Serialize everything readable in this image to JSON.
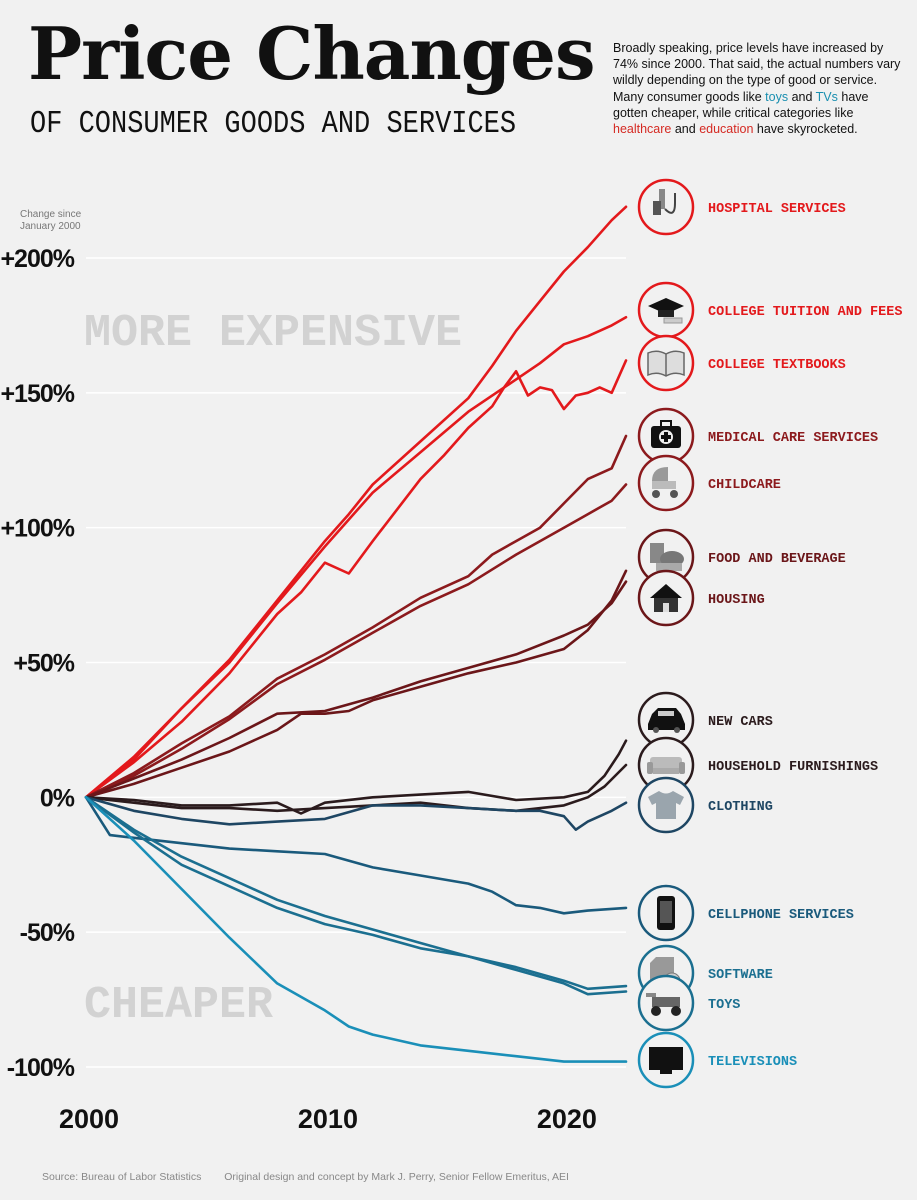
{
  "title": "Price Changes",
  "subtitle": "OF CONSUMER GOODS AND SERVICES",
  "intro": {
    "part1": "Broadly speaking, price levels have increased by 74% since 2000. That said, the actual numbers vary wildly depending on the type of good or service. Many consumer goods like ",
    "toys": "toys",
    "and1": " and ",
    "tvs": "TVs",
    "part2": " have gotten cheaper, while critical categories like ",
    "healthcare": "healthcare",
    "and2": " and ",
    "education": "education",
    "part3": " have skyrocketed."
  },
  "footer": {
    "source": "Source: Bureau of Labor Statistics",
    "credit": "Original design and concept by Mark J. Perry, Senior Fellow Emeritus, AEI"
  },
  "chart_data": {
    "type": "line",
    "axis_note": [
      "Change since",
      "January 2000"
    ],
    "y_ticks": [
      {
        "value": 200,
        "label": "+200%"
      },
      {
        "value": 150,
        "label": "+150%"
      },
      {
        "value": 100,
        "label": "+100%"
      },
      {
        "value": 50,
        "label": "+50%"
      },
      {
        "value": 0,
        "label": "0%"
      },
      {
        "value": -50,
        "label": "-50%"
      },
      {
        "value": -100,
        "label": "-100%"
      }
    ],
    "x_ticks": [
      {
        "value": 2000,
        "label": "2000"
      },
      {
        "value": 2010,
        "label": "2010"
      },
      {
        "value": 2020,
        "label": "2020"
      }
    ],
    "xlim": [
      2000,
      2022.6
    ],
    "ylim": [
      -100,
      200
    ],
    "zone_labels": {
      "upper": "MORE EXPENSIVE",
      "lower": "CHEAPER"
    },
    "colors": {
      "bright_red": "#e3191c",
      "red": "#c21d22",
      "dark_red": "#8c1a1d",
      "maroon": "#6b1619",
      "near_black": "#2b1b1d",
      "navy": "#1e4663",
      "blue": "#1a5a7c",
      "teal": "#1b6f90",
      "sky": "#1a8fb8"
    },
    "series": [
      {
        "name": "HOSPITAL SERVICES",
        "color": "#e3191c",
        "icon": "hospital-icon",
        "points": [
          [
            2000,
            0
          ],
          [
            2002,
            15
          ],
          [
            2004,
            33
          ],
          [
            2006,
            51
          ],
          [
            2008,
            73
          ],
          [
            2010,
            95
          ],
          [
            2011,
            105
          ],
          [
            2012,
            116
          ],
          [
            2014,
            132
          ],
          [
            2016,
            148
          ],
          [
            2017,
            160
          ],
          [
            2018,
            173
          ],
          [
            2019,
            184
          ],
          [
            2020,
            195
          ],
          [
            2021,
            204
          ],
          [
            2022,
            214
          ],
          [
            2022.6,
            219
          ]
        ]
      },
      {
        "name": "COLLEGE TUITION AND FEES",
        "color": "#e3191c",
        "icon": "graduation-cap-icon",
        "points": [
          [
            2000,
            0
          ],
          [
            2002,
            14
          ],
          [
            2004,
            33
          ],
          [
            2006,
            50
          ],
          [
            2008,
            72
          ],
          [
            2010,
            93
          ],
          [
            2012,
            113
          ],
          [
            2014,
            128
          ],
          [
            2016,
            143
          ],
          [
            2018,
            155
          ],
          [
            2019,
            161
          ],
          [
            2020,
            168
          ],
          [
            2021,
            171
          ],
          [
            2022,
            175
          ],
          [
            2022.6,
            178
          ]
        ]
      },
      {
        "name": "COLLEGE TEXTBOOKS",
        "color": "#e3191c",
        "icon": "book-icon",
        "points": [
          [
            2000,
            0
          ],
          [
            2002,
            13
          ],
          [
            2004,
            28
          ],
          [
            2006,
            46
          ],
          [
            2008,
            68
          ],
          [
            2009,
            76
          ],
          [
            2010,
            87
          ],
          [
            2011,
            83
          ],
          [
            2012,
            95
          ],
          [
            2014,
            118
          ],
          [
            2015,
            127
          ],
          [
            2016,
            137
          ],
          [
            2017,
            145
          ],
          [
            2017.5,
            152
          ],
          [
            2018,
            158
          ],
          [
            2018.5,
            149
          ],
          [
            2019,
            152
          ],
          [
            2019.5,
            151
          ],
          [
            2020,
            144
          ],
          [
            2020.5,
            149
          ],
          [
            2021,
            150
          ],
          [
            2021.5,
            152
          ],
          [
            2022,
            150
          ],
          [
            2022.6,
            162
          ]
        ]
      },
      {
        "name": "MEDICAL CARE SERVICES",
        "color": "#8c1a1d",
        "icon": "medical-kit-icon",
        "points": [
          [
            2000,
            0
          ],
          [
            2002,
            9
          ],
          [
            2004,
            20
          ],
          [
            2006,
            30
          ],
          [
            2008,
            44
          ],
          [
            2010,
            53
          ],
          [
            2012,
            63
          ],
          [
            2014,
            74
          ],
          [
            2016,
            82
          ],
          [
            2017,
            90
          ],
          [
            2018,
            95
          ],
          [
            2019,
            100
          ],
          [
            2020,
            109
          ],
          [
            2021,
            118
          ],
          [
            2022,
            122
          ],
          [
            2022.6,
            134
          ]
        ]
      },
      {
        "name": "CHILDCARE",
        "color": "#8c1a1d",
        "icon": "stroller-icon",
        "points": [
          [
            2000,
            0
          ],
          [
            2002,
            8
          ],
          [
            2004,
            18
          ],
          [
            2006,
            29
          ],
          [
            2008,
            42
          ],
          [
            2010,
            51
          ],
          [
            2012,
            61
          ],
          [
            2014,
            71
          ],
          [
            2016,
            79
          ],
          [
            2018,
            90
          ],
          [
            2020,
            100
          ],
          [
            2021,
            105
          ],
          [
            2022,
            110
          ],
          [
            2022.6,
            116
          ]
        ]
      },
      {
        "name": "FOOD AND BEVERAGE",
        "color": "#6b1619",
        "icon": "food-icon",
        "points": [
          [
            2000,
            0
          ],
          [
            2002,
            5
          ],
          [
            2004,
            11
          ],
          [
            2006,
            17
          ],
          [
            2008,
            25
          ],
          [
            2009,
            31
          ],
          [
            2010,
            31
          ],
          [
            2011,
            32
          ],
          [
            2012,
            36
          ],
          [
            2014,
            41
          ],
          [
            2016,
            46
          ],
          [
            2018,
            50
          ],
          [
            2020,
            55
          ],
          [
            2021,
            62
          ],
          [
            2022,
            73
          ],
          [
            2022.6,
            84
          ]
        ]
      },
      {
        "name": "HOUSING",
        "color": "#6b1619",
        "icon": "house-icon",
        "points": [
          [
            2000,
            0
          ],
          [
            2002,
            7
          ],
          [
            2004,
            14
          ],
          [
            2006,
            22
          ],
          [
            2008,
            31
          ],
          [
            2010,
            32
          ],
          [
            2012,
            37
          ],
          [
            2014,
            43
          ],
          [
            2016,
            48
          ],
          [
            2018,
            53
          ],
          [
            2020,
            60
          ],
          [
            2021,
            64
          ],
          [
            2022,
            72
          ],
          [
            2022.6,
            80
          ]
        ]
      },
      {
        "name": "NEW CARS",
        "color": "#2b1b1d",
        "icon": "car-icon",
        "points": [
          [
            2000,
            0
          ],
          [
            2002,
            -1
          ],
          [
            2004,
            -3
          ],
          [
            2006,
            -3
          ],
          [
            2008,
            -2
          ],
          [
            2009,
            -6
          ],
          [
            2010,
            -2
          ],
          [
            2012,
            0
          ],
          [
            2014,
            1
          ],
          [
            2016,
            2
          ],
          [
            2018,
            -1
          ],
          [
            2020,
            0
          ],
          [
            2021,
            2
          ],
          [
            2021.7,
            8
          ],
          [
            2022.3,
            16
          ],
          [
            2022.6,
            21
          ]
        ]
      },
      {
        "name": "HOUSEHOLD FURNISHINGS",
        "color": "#2b1b1d",
        "icon": "sofa-icon",
        "points": [
          [
            2000,
            0
          ],
          [
            2002,
            -2
          ],
          [
            2004,
            -4
          ],
          [
            2006,
            -4
          ],
          [
            2008,
            -5
          ],
          [
            2010,
            -4
          ],
          [
            2012,
            -3
          ],
          [
            2014,
            -2
          ],
          [
            2016,
            -4
          ],
          [
            2018,
            -5
          ],
          [
            2020,
            -3
          ],
          [
            2021,
            0
          ],
          [
            2021.7,
            4
          ],
          [
            2022.6,
            12
          ]
        ]
      },
      {
        "name": "CLOTHING",
        "color": "#1e4663",
        "icon": "shirt-icon",
        "points": [
          [
            2000,
            0
          ],
          [
            2002,
            -5
          ],
          [
            2004,
            -8
          ],
          [
            2006,
            -10
          ],
          [
            2008,
            -9
          ],
          [
            2010,
            -8
          ],
          [
            2012,
            -3
          ],
          [
            2014,
            -3
          ],
          [
            2016,
            -4
          ],
          [
            2018,
            -5
          ],
          [
            2019,
            -5
          ],
          [
            2020,
            -7
          ],
          [
            2020.5,
            -12
          ],
          [
            2021,
            -9
          ],
          [
            2022,
            -5
          ],
          [
            2022.6,
            -2
          ]
        ]
      },
      {
        "name": "CELLPHONE SERVICES",
        "color": "#1a5a7c",
        "icon": "phone-icon",
        "points": [
          [
            2000,
            0
          ],
          [
            2001,
            -14
          ],
          [
            2002,
            -15
          ],
          [
            2004,
            -17
          ],
          [
            2006,
            -19
          ],
          [
            2008,
            -20
          ],
          [
            2010,
            -21
          ],
          [
            2012,
            -26
          ],
          [
            2014,
            -29
          ],
          [
            2016,
            -32
          ],
          [
            2017,
            -35
          ],
          [
            2018,
            -40
          ],
          [
            2019,
            -41
          ],
          [
            2020,
            -43
          ],
          [
            2021,
            -42
          ],
          [
            2022.6,
            -41
          ]
        ]
      },
      {
        "name": "SOFTWARE",
        "color": "#1b6f90",
        "icon": "software-icon",
        "points": [
          [
            2000,
            0
          ],
          [
            2002,
            -13
          ],
          [
            2004,
            -25
          ],
          [
            2006,
            -33
          ],
          [
            2008,
            -41
          ],
          [
            2010,
            -47
          ],
          [
            2012,
            -51
          ],
          [
            2014,
            -56
          ],
          [
            2016,
            -59
          ],
          [
            2018,
            -63
          ],
          [
            2020,
            -68
          ],
          [
            2021,
            -71
          ],
          [
            2022.6,
            -70
          ]
        ]
      },
      {
        "name": "TOYS",
        "color": "#1b6f90",
        "icon": "toys-icon",
        "points": [
          [
            2000,
            0
          ],
          [
            2002,
            -12
          ],
          [
            2004,
            -22
          ],
          [
            2006,
            -30
          ],
          [
            2008,
            -38
          ],
          [
            2010,
            -44
          ],
          [
            2012,
            -49
          ],
          [
            2014,
            -54
          ],
          [
            2016,
            -59
          ],
          [
            2018,
            -64
          ],
          [
            2020,
            -69
          ],
          [
            2021,
            -73
          ],
          [
            2022.6,
            -72
          ]
        ]
      },
      {
        "name": "TELEVISIONS",
        "color": "#1a8fb8",
        "icon": "tv-icon",
        "points": [
          [
            2000,
            0
          ],
          [
            2002,
            -16
          ],
          [
            2004,
            -34
          ],
          [
            2006,
            -52
          ],
          [
            2008,
            -69
          ],
          [
            2010,
            -79
          ],
          [
            2011,
            -85
          ],
          [
            2012,
            -88
          ],
          [
            2014,
            -92
          ],
          [
            2016,
            -94
          ],
          [
            2018,
            -96
          ],
          [
            2020,
            -98
          ],
          [
            2022.6,
            -98
          ]
        ]
      }
    ]
  }
}
